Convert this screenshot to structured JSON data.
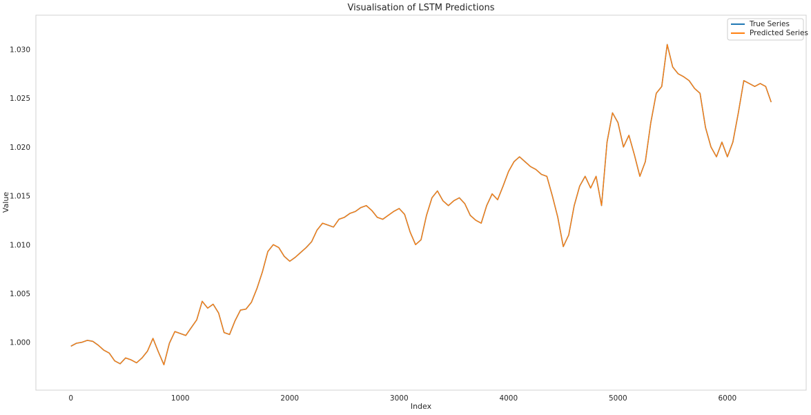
{
  "chart_data": {
    "type": "line",
    "title": "Visualisation of LSTM Predictions",
    "xlabel": "Index",
    "ylabel": "Value",
    "xlim": [
      -320,
      6720
    ],
    "ylim": [
      0.9951,
      1.0335
    ],
    "grid": false,
    "legend_position": "top-right",
    "x_ticks": [
      0,
      1000,
      2000,
      3000,
      4000,
      5000,
      6000
    ],
    "x_tick_labels": [
      "0",
      "1000",
      "2000",
      "3000",
      "4000",
      "5000",
      "6000"
    ],
    "y_ticks": [
      1.0,
      1.005,
      1.01,
      1.015,
      1.02,
      1.025,
      1.03
    ],
    "y_tick_labels": [
      "1.000",
      "1.005",
      "1.010",
      "1.015",
      "1.020",
      "1.025",
      "1.030"
    ],
    "series": [
      {
        "name": "True Series",
        "color": "#1f77b4",
        "x": [
          0,
          50,
          100,
          150,
          200,
          250,
          300,
          350,
          400,
          450,
          500,
          550,
          600,
          650,
          700,
          750,
          800,
          850,
          900,
          950,
          1000,
          1050,
          1100,
          1150,
          1200,
          1250,
          1300,
          1350,
          1400,
          1450,
          1500,
          1550,
          1600,
          1650,
          1700,
          1750,
          1800,
          1850,
          1900,
          1950,
          2000,
          2050,
          2100,
          2150,
          2200,
          2250,
          2300,
          2350,
          2400,
          2450,
          2500,
          2550,
          2600,
          2650,
          2700,
          2750,
          2800,
          2850,
          2900,
          2950,
          3000,
          3050,
          3100,
          3150,
          3200,
          3250,
          3300,
          3350,
          3400,
          3450,
          3500,
          3550,
          3600,
          3650,
          3700,
          3750,
          3800,
          3850,
          3900,
          3950,
          4000,
          4050,
          4100,
          4150,
          4200,
          4250,
          4300,
          4350,
          4400,
          4450,
          4500,
          4550,
          4600,
          4650,
          4700,
          4750,
          4800,
          4850,
          4900,
          4950,
          5000,
          5050,
          5100,
          5150,
          5200,
          5250,
          5300,
          5350,
          5400,
          5450,
          5500,
          5550,
          5600,
          5650,
          5700,
          5750,
          5800,
          5850,
          5900,
          5950,
          6000,
          6050,
          6100,
          6150,
          6200,
          6250,
          6300,
          6350,
          6400
        ],
        "values": [
          0.9996,
          0.9999,
          1.0,
          1.0002,
          1.0001,
          0.9997,
          0.9992,
          0.9989,
          0.9981,
          0.9978,
          0.9984,
          0.9982,
          0.9979,
          0.9984,
          0.9991,
          1.0004,
          0.999,
          0.9977,
          0.9999,
          1.0011,
          1.0009,
          1.0007,
          1.0015,
          1.0023,
          1.0042,
          1.0035,
          1.0039,
          1.003,
          1.001,
          1.0008,
          1.0022,
          1.0033,
          1.0034,
          1.0041,
          1.0055,
          1.0072,
          1.0093,
          1.01,
          1.0097,
          1.0088,
          1.0083,
          1.0087,
          1.0092,
          1.0097,
          1.0103,
          1.0115,
          1.0122,
          1.012,
          1.0118,
          1.0126,
          1.0128,
          1.0132,
          1.0134,
          1.0138,
          1.014,
          1.0135,
          1.0128,
          1.0126,
          1.013,
          1.0134,
          1.0137,
          1.0131,
          1.0113,
          1.01,
          1.0105,
          1.013,
          1.0148,
          1.0155,
          1.0145,
          1.014,
          1.0145,
          1.0148,
          1.0142,
          1.013,
          1.0125,
          1.0122,
          1.014,
          1.0152,
          1.0146,
          1.016,
          1.0175,
          1.0185,
          1.019,
          1.0185,
          1.018,
          1.0177,
          1.0172,
          1.017,
          1.015,
          1.0128,
          1.0098,
          1.011,
          1.014,
          1.016,
          1.017,
          1.0158,
          1.017,
          1.014,
          1.0205,
          1.0235,
          1.0225,
          1.02,
          1.0212,
          1.0192,
          1.017,
          1.0185,
          1.0225,
          1.0255,
          1.0262,
          1.0305,
          1.0282,
          1.0275,
          1.0272,
          1.0268,
          1.026,
          1.0255,
          1.022,
          1.02,
          1.019,
          1.0205,
          1.019,
          1.0205,
          1.0235,
          1.0268,
          1.0265,
          1.0262,
          1.0265,
          1.0262,
          1.0246
        ]
      },
      {
        "name": "Predicted Series",
        "color": "#ff7f0e",
        "x": [
          0,
          50,
          100,
          150,
          200,
          250,
          300,
          350,
          400,
          450,
          500,
          550,
          600,
          650,
          700,
          750,
          800,
          850,
          900,
          950,
          1000,
          1050,
          1100,
          1150,
          1200,
          1250,
          1300,
          1350,
          1400,
          1450,
          1500,
          1550,
          1600,
          1650,
          1700,
          1750,
          1800,
          1850,
          1900,
          1950,
          2000,
          2050,
          2100,
          2150,
          2200,
          2250,
          2300,
          2350,
          2400,
          2450,
          2500,
          2550,
          2600,
          2650,
          2700,
          2750,
          2800,
          2850,
          2900,
          2950,
          3000,
          3050,
          3100,
          3150,
          3200,
          3250,
          3300,
          3350,
          3400,
          3450,
          3500,
          3550,
          3600,
          3650,
          3700,
          3750,
          3800,
          3850,
          3900,
          3950,
          4000,
          4050,
          4100,
          4150,
          4200,
          4250,
          4300,
          4350,
          4400,
          4450,
          4500,
          4550,
          4600,
          4650,
          4700,
          4750,
          4800,
          4850,
          4900,
          4950,
          5000,
          5050,
          5100,
          5150,
          5200,
          5250,
          5300,
          5350,
          5400,
          5450,
          5500,
          5550,
          5600,
          5650,
          5700,
          5750,
          5800,
          5850,
          5900,
          5950,
          6000,
          6050,
          6100,
          6150,
          6200,
          6250,
          6300,
          6350,
          6400
        ],
        "values": [
          0.9996,
          0.9999,
          1.0,
          1.0002,
          1.0001,
          0.9997,
          0.9992,
          0.9989,
          0.9981,
          0.9978,
          0.9984,
          0.9982,
          0.9979,
          0.9984,
          0.9991,
          1.0004,
          0.999,
          0.9977,
          0.9999,
          1.0011,
          1.0009,
          1.0007,
          1.0015,
          1.0023,
          1.0042,
          1.0035,
          1.0039,
          1.003,
          1.001,
          1.0008,
          1.0022,
          1.0033,
          1.0034,
          1.0041,
          1.0055,
          1.0072,
          1.0093,
          1.01,
          1.0097,
          1.0088,
          1.0083,
          1.0087,
          1.0092,
          1.0097,
          1.0103,
          1.0115,
          1.0122,
          1.012,
          1.0118,
          1.0126,
          1.0128,
          1.0132,
          1.0134,
          1.0138,
          1.014,
          1.0135,
          1.0128,
          1.0126,
          1.013,
          1.0134,
          1.0137,
          1.0131,
          1.0113,
          1.01,
          1.0105,
          1.013,
          1.0148,
          1.0155,
          1.0145,
          1.014,
          1.0145,
          1.0148,
          1.0142,
          1.013,
          1.0125,
          1.0122,
          1.014,
          1.0152,
          1.0146,
          1.016,
          1.0175,
          1.0185,
          1.019,
          1.0185,
          1.018,
          1.0177,
          1.0172,
          1.017,
          1.015,
          1.0128,
          1.0098,
          1.011,
          1.014,
          1.016,
          1.017,
          1.0158,
          1.017,
          1.014,
          1.0205,
          1.0235,
          1.0225,
          1.02,
          1.0212,
          1.0192,
          1.017,
          1.0185,
          1.0225,
          1.0255,
          1.0262,
          1.0305,
          1.0282,
          1.0275,
          1.0272,
          1.0268,
          1.026,
          1.0255,
          1.022,
          1.02,
          1.019,
          1.0205,
          1.019,
          1.0205,
          1.0235,
          1.0268,
          1.0265,
          1.0262,
          1.0265,
          1.0262,
          1.0246
        ]
      }
    ]
  }
}
